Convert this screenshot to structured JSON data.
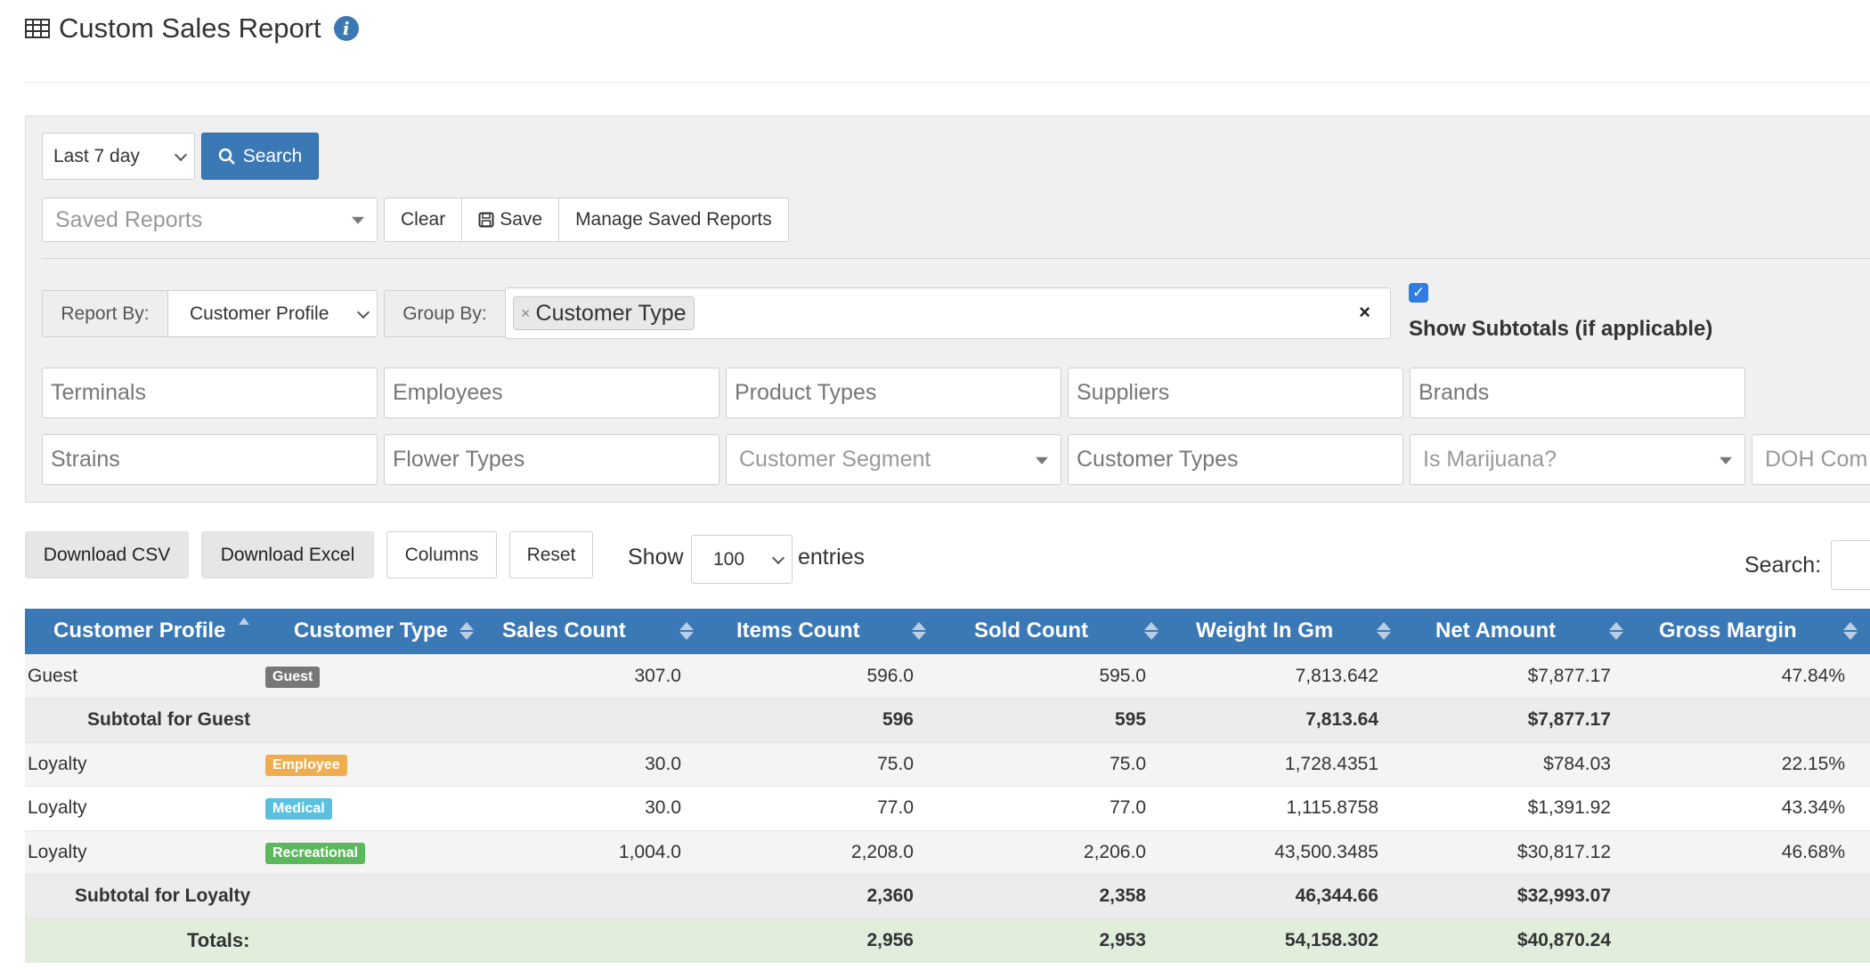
{
  "header": {
    "title": "Custom Sales Report",
    "title_icon": "table-icon",
    "info_icon": "info-icon"
  },
  "filters": {
    "date_range_value": "Last 7 day",
    "search_label": "Search",
    "saved_reports_placeholder": "Saved Reports",
    "clear_label": "Clear",
    "save_label": "Save",
    "manage_label": "Manage Saved Reports",
    "report_by_label": "Report By:",
    "report_by_value": "Customer Profile",
    "group_by_label": "Group By:",
    "group_by_tag": "Customer Type",
    "group_by_tag_remove": "×",
    "group_by_clear": "×",
    "show_subtotals_checked": true,
    "show_subtotals_label": "Show Subtotals (if applicable)",
    "row1": [
      "Terminals",
      "Employees",
      "Product Types",
      "Suppliers",
      "Brands"
    ],
    "row2": {
      "strains": "Strains",
      "flower_types": "Flower Types",
      "customer_segment": "Customer Segment",
      "customer_types": "Customer Types",
      "is_marijuana": "Is Marijuana?",
      "doh": "DOH Com"
    }
  },
  "actions": {
    "download_csv": "Download CSV",
    "download_excel": "Download Excel",
    "columns": "Columns",
    "reset": "Reset",
    "show_label": "Show",
    "entries_value": "100",
    "entries_label": "entries",
    "search_label": "Search:"
  },
  "table": {
    "columns": [
      "Customer Profile",
      "Customer Type",
      "Sales Count",
      "Items Count",
      "Sold Count",
      "Weight In Gm",
      "Net Amount",
      "Gross Margin"
    ],
    "rows": [
      {
        "profile": "Guest",
        "type": "Guest",
        "sales": "307.0",
        "items": "596.0",
        "sold": "595.0",
        "weight": "7,813.642",
        "net": "$7,877.17",
        "margin": "47.84%"
      },
      {
        "subtotal": "Subtotal for Guest",
        "items": "596",
        "sold": "595",
        "weight": "7,813.64",
        "net": "$7,877.17"
      },
      {
        "profile": "Loyalty",
        "type": "Employee",
        "sales": "30.0",
        "items": "75.0",
        "sold": "75.0",
        "weight": "1,728.4351",
        "net": "$784.03",
        "margin": "22.15%"
      },
      {
        "profile": "Loyalty",
        "type": "Medical",
        "sales": "30.0",
        "items": "77.0",
        "sold": "77.0",
        "weight": "1,115.8758",
        "net": "$1,391.92",
        "margin": "43.34%"
      },
      {
        "profile": "Loyalty",
        "type": "Recreational",
        "sales": "1,004.0",
        "items": "2,208.0",
        "sold": "2,206.0",
        "weight": "43,500.3485",
        "net": "$30,817.12",
        "margin": "46.68%"
      },
      {
        "subtotal": "Subtotal for Loyalty",
        "items": "2,360",
        "sold": "2,358",
        "weight": "46,344.66",
        "net": "$32,993.07"
      },
      {
        "totals": "Totals:",
        "items": "2,956",
        "sold": "2,953",
        "weight": "54,158.302",
        "net": "$40,870.24"
      }
    ],
    "badge_colors": {
      "Guest": "#777777",
      "Employee": "#f0ad4e",
      "Medical": "#5bc0de",
      "Recreational": "#5cb85c"
    }
  }
}
